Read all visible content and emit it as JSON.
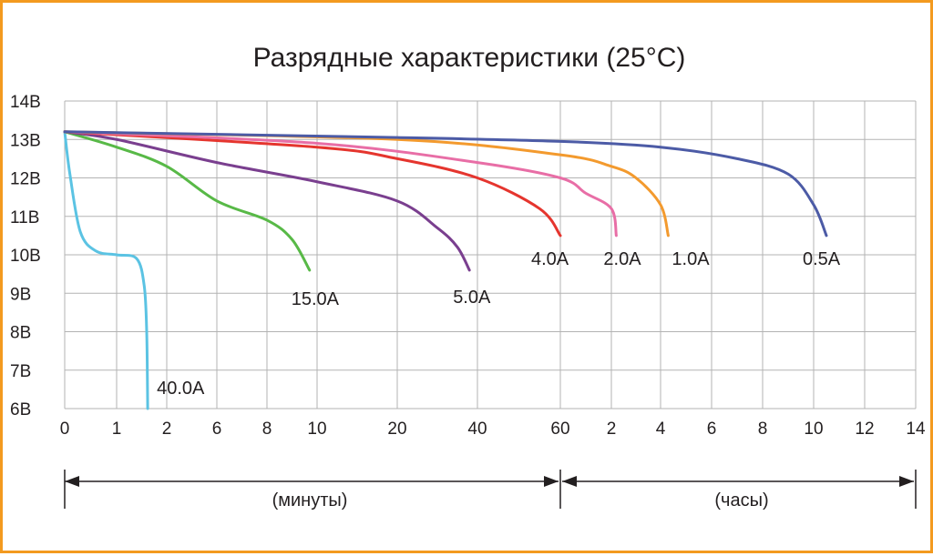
{
  "chart_data": {
    "type": "line",
    "title": "Разрядные характеристики (25°C)",
    "y_ticks": [
      "14В",
      "13В",
      "12В",
      "11В",
      "10В",
      "9В",
      "8В",
      "7В",
      "6В"
    ],
    "y_values": [
      14,
      13,
      12,
      11,
      10,
      9,
      8,
      7,
      6
    ],
    "ylim": [
      6,
      14
    ],
    "x_ticks": [
      "0",
      "1",
      "2",
      "6",
      "8",
      "10",
      "20",
      "40",
      "60",
      "2",
      "4",
      "6",
      "8",
      "10",
      "12",
      "14"
    ],
    "x_scale": "segmented: minutes 0–60, then hours 1–14",
    "grid": true,
    "ranges": [
      {
        "label": "(минуты)"
      },
      {
        "label": "(часы)"
      }
    ],
    "colors": {
      "frame": "#f39a1f",
      "40.0A": "#5bc3e3",
      "15.0A": "#58b947",
      "5.0A": "#7a3f8f",
      "4.0A": "#e5352e",
      "2.0A": "#e86ea6",
      "1.0A": "#f39a2e",
      "0.5A": "#4c5ba6"
    },
    "series": [
      {
        "name": "40.0A",
        "points": [
          [
            0,
            13.2
          ],
          [
            0.1,
            12.1
          ],
          [
            0.3,
            10.6
          ],
          [
            0.6,
            10.1
          ],
          [
            1.0,
            10.0
          ],
          [
            1.4,
            9.9
          ],
          [
            1.55,
            9.2
          ],
          [
            1.6,
            8.0
          ],
          [
            1.62,
            6.0
          ]
        ]
      },
      {
        "name": "15.0A",
        "points": [
          [
            0,
            13.2
          ],
          [
            1,
            12.8
          ],
          [
            2,
            12.3
          ],
          [
            6,
            11.4
          ],
          [
            8,
            10.9
          ],
          [
            9,
            10.4
          ],
          [
            9.7,
            9.6
          ]
        ]
      },
      {
        "name": "5.0A",
        "points": [
          [
            0,
            13.2
          ],
          [
            1,
            13.0
          ],
          [
            6,
            12.4
          ],
          [
            10,
            11.9
          ],
          [
            20,
            11.4
          ],
          [
            30,
            10.7
          ],
          [
            35,
            10.2
          ],
          [
            38,
            9.6
          ]
        ]
      },
      {
        "name": "4.0A",
        "points": [
          [
            0,
            13.2
          ],
          [
            10,
            12.8
          ],
          [
            20,
            12.5
          ],
          [
            40,
            12.0
          ],
          [
            55,
            11.2
          ],
          [
            64,
            10.5
          ]
        ]
      },
      {
        "name": "2.0A",
        "points": [
          [
            0,
            13.2
          ],
          [
            10,
            12.9
          ],
          [
            40,
            12.4
          ],
          [
            60,
            12.0
          ],
          [
            1.5,
            11.6
          ],
          [
            2.0,
            11.2
          ],
          [
            2.2,
            10.5
          ]
        ]
      },
      {
        "name": "1.0A",
        "points": [
          [
            0,
            13.2
          ],
          [
            20,
            13.0
          ],
          [
            60,
            12.6
          ],
          [
            2,
            12.3
          ],
          [
            3,
            12.0
          ],
          [
            4,
            11.3
          ],
          [
            4.3,
            10.5
          ]
        ]
      },
      {
        "name": "0.5A",
        "points": [
          [
            0,
            13.2
          ],
          [
            20,
            13.05
          ],
          [
            60,
            12.95
          ],
          [
            4,
            12.8
          ],
          [
            7,
            12.5
          ],
          [
            9,
            12.1
          ],
          [
            10,
            11.3
          ],
          [
            10.5,
            10.5
          ]
        ]
      }
    ]
  }
}
